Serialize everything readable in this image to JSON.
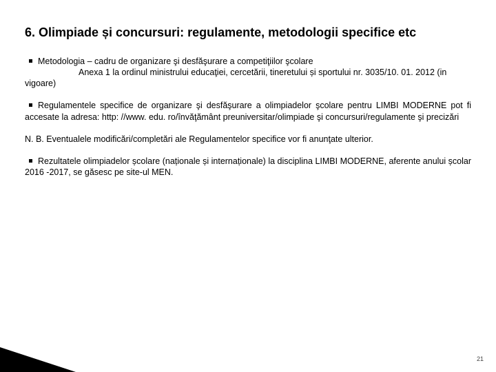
{
  "title": "6. Olimpiade și concursuri: regulamente, metodologii specifice etc",
  "p1": {
    "lead": "Metodologia – cadru de organizare şi desfăşurare a competiţiilor şcolare",
    "annex": "Anexa 1 la ordinul ministrului educaţiei, cercetării, tineretului și sportului nr. 3035/10. 01. 2012 (in vigoare)"
  },
  "p2": "Regulamentele specifice de organizare şi desfăşurare a olimpiadelor şcolare pentru LIMBI MODERNE pot fi accesate la adresa: http: //www. edu. ro/învăţământ preuniversitar/olimpiade şi concursuri/regulamente şi precizări",
  "p3": "N. B. Eventualele modificări/completări ale Regulamentelor specifice vor fi anunţate ulterior.",
  "p4": "Rezultatele olimpiadelor școlare (naționale și internaționale) la disciplina LIMBI MODERNE, aferente anului școlar 2016 -2017, se găsesc pe site-ul MEN.",
  "pageNumber": "21"
}
